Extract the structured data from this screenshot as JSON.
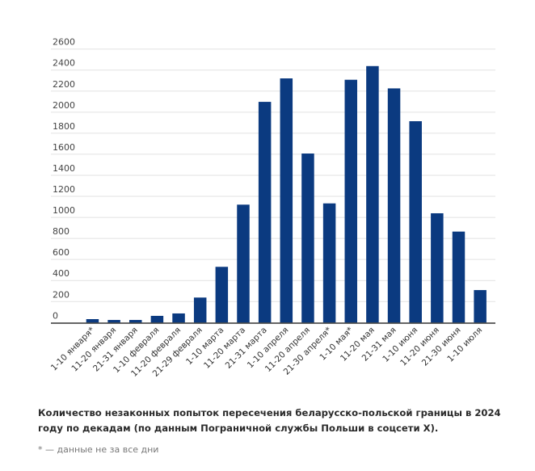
{
  "chart_data": {
    "type": "bar",
    "title": "",
    "xlabel": "",
    "ylabel": "",
    "ylim": [
      0,
      2600
    ],
    "yticks": [
      0,
      200,
      400,
      600,
      800,
      1000,
      1200,
      1400,
      1600,
      1800,
      2000,
      2200,
      2400,
      2600
    ],
    "grid": true,
    "bar_color": "#0b3a80",
    "categories": [
      "1-10 января*",
      "11-20 января",
      "21-31 января",
      "1-10 февраля",
      "11-20 февраля",
      "21-29 февраля",
      "1-10 марта",
      "11-20 марта",
      "21-31 марта",
      "1-10 апреля",
      "11-20 апреля",
      "21-30 апреля*",
      "1-10 мая*",
      "11-20 мая",
      "21-31 мая",
      "1-10 июня",
      "11-20 июня",
      "21-30 июня",
      "1-10 июля"
    ],
    "values": [
      33,
      25,
      25,
      64,
      87,
      238,
      530,
      1121,
      2098,
      2321,
      1607,
      1133,
      2308,
      2438,
      2226,
      1914,
      1039,
      865,
      309
    ]
  },
  "caption": "Количество незаконных попыток пересечения беларусско-польской границы в 2024 году по декадам (по данным Пограничной службы Польши в соцсети X).",
  "footnote": "* — данные не за все дни"
}
